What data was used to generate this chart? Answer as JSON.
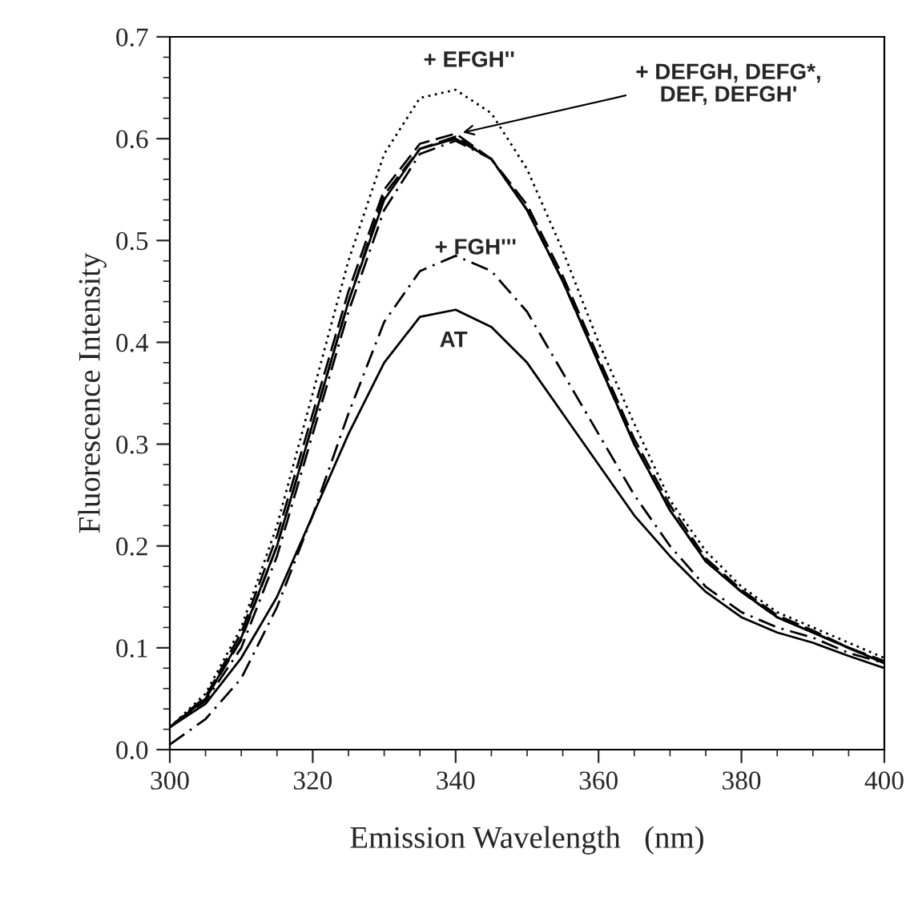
{
  "chart_data": {
    "type": "line",
    "xlabel": "Emission Wavelength   (nm)",
    "ylabel": "Fluorescence Intensity",
    "x": [
      300,
      305,
      310,
      315,
      320,
      325,
      330,
      335,
      340,
      345,
      350,
      355,
      360,
      365,
      370,
      375,
      380,
      385,
      390,
      395,
      400
    ],
    "series": [
      {
        "color": "#000000",
        "line_style": "solid",
        "values": [
          0.022,
          0.045,
          0.09,
          0.15,
          0.23,
          0.31,
          0.38,
          0.425,
          0.432,
          0.415,
          0.38,
          0.33,
          0.28,
          0.23,
          0.19,
          0.155,
          0.13,
          0.115,
          0.105,
          0.092,
          0.08
        ]
      },
      {
        "color": "#000000",
        "line_style": "dashdot",
        "values": [
          0.005,
          0.03,
          0.07,
          0.14,
          0.23,
          0.33,
          0.42,
          0.47,
          0.485,
          0.47,
          0.43,
          0.37,
          0.31,
          0.25,
          0.2,
          0.16,
          0.135,
          0.12,
          0.11,
          0.095,
          0.085
        ]
      },
      {
        "color": "#000000",
        "line_style": "dotted",
        "values": [
          0.022,
          0.055,
          0.12,
          0.22,
          0.35,
          0.48,
          0.585,
          0.64,
          0.648,
          0.625,
          0.57,
          0.49,
          0.4,
          0.32,
          0.245,
          0.195,
          0.16,
          0.135,
          0.12,
          0.105,
          0.09
        ]
      },
      {
        "color": "#000000",
        "line_style": "solid",
        "values": [
          0.022,
          0.05,
          0.11,
          0.2,
          0.32,
          0.44,
          0.54,
          0.59,
          0.6,
          0.58,
          0.53,
          0.46,
          0.38,
          0.3,
          0.235,
          0.185,
          0.155,
          0.13,
          0.115,
          0.1,
          0.085
        ]
      },
      {
        "color": "#000000",
        "line_style": "dashed",
        "values": [
          0.022,
          0.052,
          0.115,
          0.21,
          0.33,
          0.45,
          0.55,
          0.595,
          0.605,
          0.58,
          0.53,
          0.46,
          0.38,
          0.3,
          0.235,
          0.185,
          0.155,
          0.13,
          0.115,
          0.1,
          0.085
        ]
      },
      {
        "color": "#000000",
        "line_style": "dashdot",
        "values": [
          0.022,
          0.048,
          0.1,
          0.19,
          0.31,
          0.43,
          0.53,
          0.585,
          0.598,
          0.58,
          0.53,
          0.46,
          0.38,
          0.3,
          0.235,
          0.185,
          0.155,
          0.13,
          0.115,
          0.1,
          0.085
        ]
      },
      {
        "color": "#000000",
        "line_style": "dashed",
        "values": [
          0.022,
          0.05,
          0.108,
          0.2,
          0.32,
          0.44,
          0.545,
          0.59,
          0.602,
          0.58,
          0.535,
          0.465,
          0.385,
          0.305,
          0.24,
          0.188,
          0.157,
          0.132,
          0.117,
          0.1,
          0.087
        ]
      }
    ],
    "annotations": [
      "+ EFGH''",
      "+ FGH'''",
      "AT",
      {
        "text": "+ DEFGH, DEFG*,\nDEF, DEFGH'",
        "x": 341,
        "y": 0.606
      }
    ],
    "xlim": [
      300,
      400
    ],
    "xticks": [
      300,
      320,
      340,
      360,
      380,
      400
    ],
    "ylim": [
      0,
      0.7
    ],
    "yticks": [
      {
        "value": 0,
        "label": "0.0"
      },
      0.1,
      0.2,
      0.3,
      0.4,
      0.5,
      0.6,
      0.7
    ],
    "grid": false,
    "marker": "none"
  }
}
